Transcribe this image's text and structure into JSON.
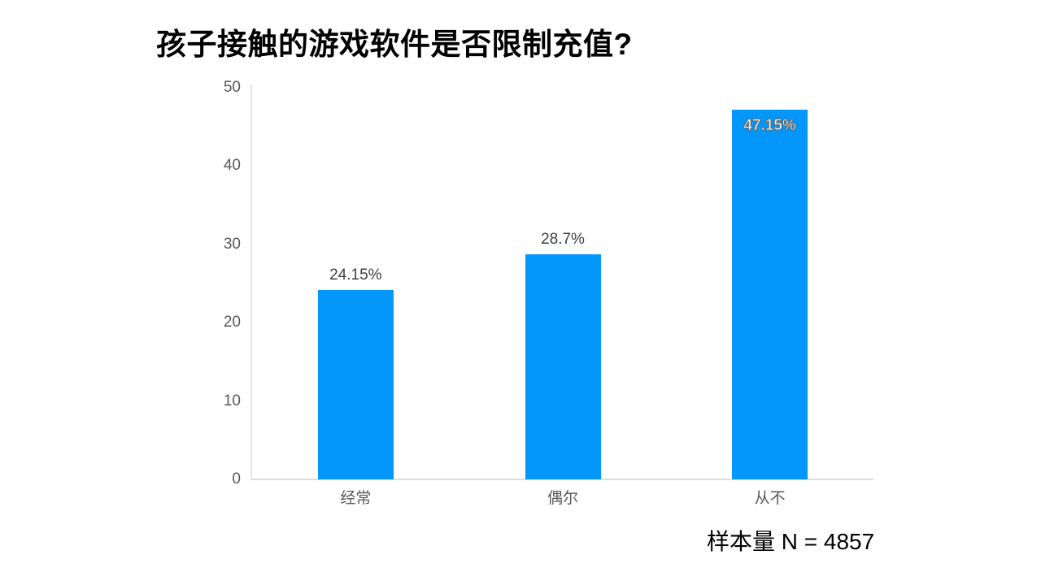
{
  "title": "孩子接触的游戏软件是否限制充值?",
  "note": "样本量 N = 4857",
  "colors": {
    "bar": "#0397fb",
    "axis_line": "#dde7f1",
    "baseline": "#d8dde6",
    "tick_text": "#595959",
    "data_label_text": "#404040",
    "inside_label_text": "#ffffff",
    "title_text": "#000000"
  },
  "chart_data": {
    "type": "bar",
    "title": "孩子接触的游戏软件是否限制充值?",
    "categories": [
      "经常",
      "偶尔",
      "从不"
    ],
    "values": [
      24.15,
      28.7,
      47.15
    ],
    "data_labels": [
      "24.15%",
      "28.7%",
      "47.15%"
    ],
    "data_label_placement": [
      "above",
      "above",
      "inside"
    ],
    "xlabel": "",
    "ylabel": "",
    "ylim": [
      0,
      50
    ],
    "yticks": [
      0,
      10,
      20,
      30,
      40,
      50
    ],
    "grid": false,
    "legend": false,
    "annotation": "样本量 N = 4857"
  }
}
